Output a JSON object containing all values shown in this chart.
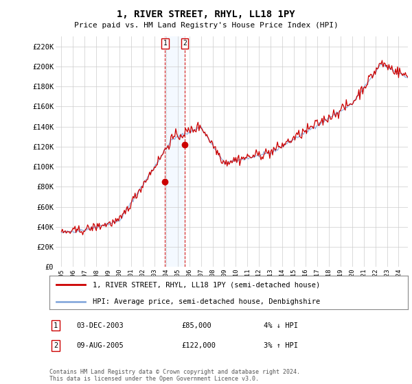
{
  "title": "1, RIVER STREET, RHYL, LL18 1PY",
  "subtitle": "Price paid vs. HM Land Registry's House Price Index (HPI)",
  "legend_line1": "1, RIVER STREET, RHYL, LL18 1PY (semi-detached house)",
  "legend_line2": "HPI: Average price, semi-detached house, Denbighshire",
  "footnote": "Contains HM Land Registry data © Crown copyright and database right 2024.\nThis data is licensed under the Open Government Licence v3.0.",
  "transactions": [
    {
      "num": 1,
      "date": "03-DEC-2003",
      "price": "£85,000",
      "change": "4% ↓ HPI",
      "x_year": 2003.92
    },
    {
      "num": 2,
      "date": "09-AUG-2005",
      "price": "£122,000",
      "change": "3% ↑ HPI",
      "x_year": 2005.6
    }
  ],
  "transaction_prices": [
    85000,
    122000
  ],
  "transaction_years": [
    2003.92,
    2005.6
  ],
  "hpi_color": "#88aadd",
  "price_color": "#cc0000",
  "shading_color": "#ddeeff",
  "grid_color": "#cccccc",
  "background_color": "#ffffff",
  "ylim": [
    0,
    230000
  ],
  "xlim_start": 1994.5,
  "xlim_end": 2024.8,
  "yticks": [
    0,
    20000,
    40000,
    60000,
    80000,
    100000,
    120000,
    140000,
    160000,
    180000,
    200000,
    220000
  ],
  "xticks": [
    1995,
    1996,
    1997,
    1998,
    1999,
    2000,
    2001,
    2002,
    2003,
    2004,
    2005,
    2006,
    2007,
    2008,
    2009,
    2010,
    2011,
    2012,
    2013,
    2014,
    2015,
    2016,
    2017,
    2018,
    2019,
    2020,
    2021,
    2022,
    2023,
    2024
  ],
  "noise_seed": 42,
  "hpi_noise_scale": 800,
  "price_noise_scale": 1500
}
